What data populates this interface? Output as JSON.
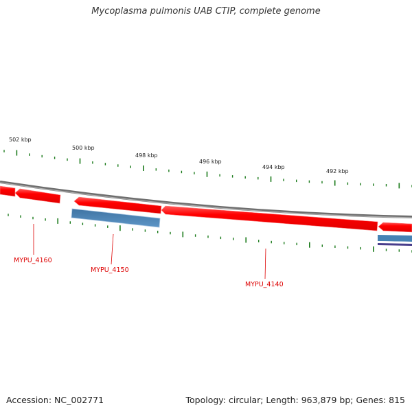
{
  "title": "Mycoplasma pulmonis UAB CTIP, complete genome",
  "footer": {
    "accession_label": "Accession:",
    "accession": "NC_002771",
    "stats": "Topology: circular; Length: 963,879 bp; Genes: 815"
  },
  "colors": {
    "background": "#ffffff",
    "backbone": "#888888",
    "cds": "#ff0000",
    "gene_blue": "#4682b4",
    "gene_purple": "#483d8b",
    "tick": "#1a7a1a",
    "label": "#dd0000"
  },
  "kbp_labels": [
    "502 kbp",
    "500 kbp",
    "498 kbp",
    "496 kbp",
    "494 kbp",
    "492 kbp"
  ],
  "gene_labels": [
    "MYPU_4160",
    "MYPU_4150",
    "MYPU_4140"
  ]
}
